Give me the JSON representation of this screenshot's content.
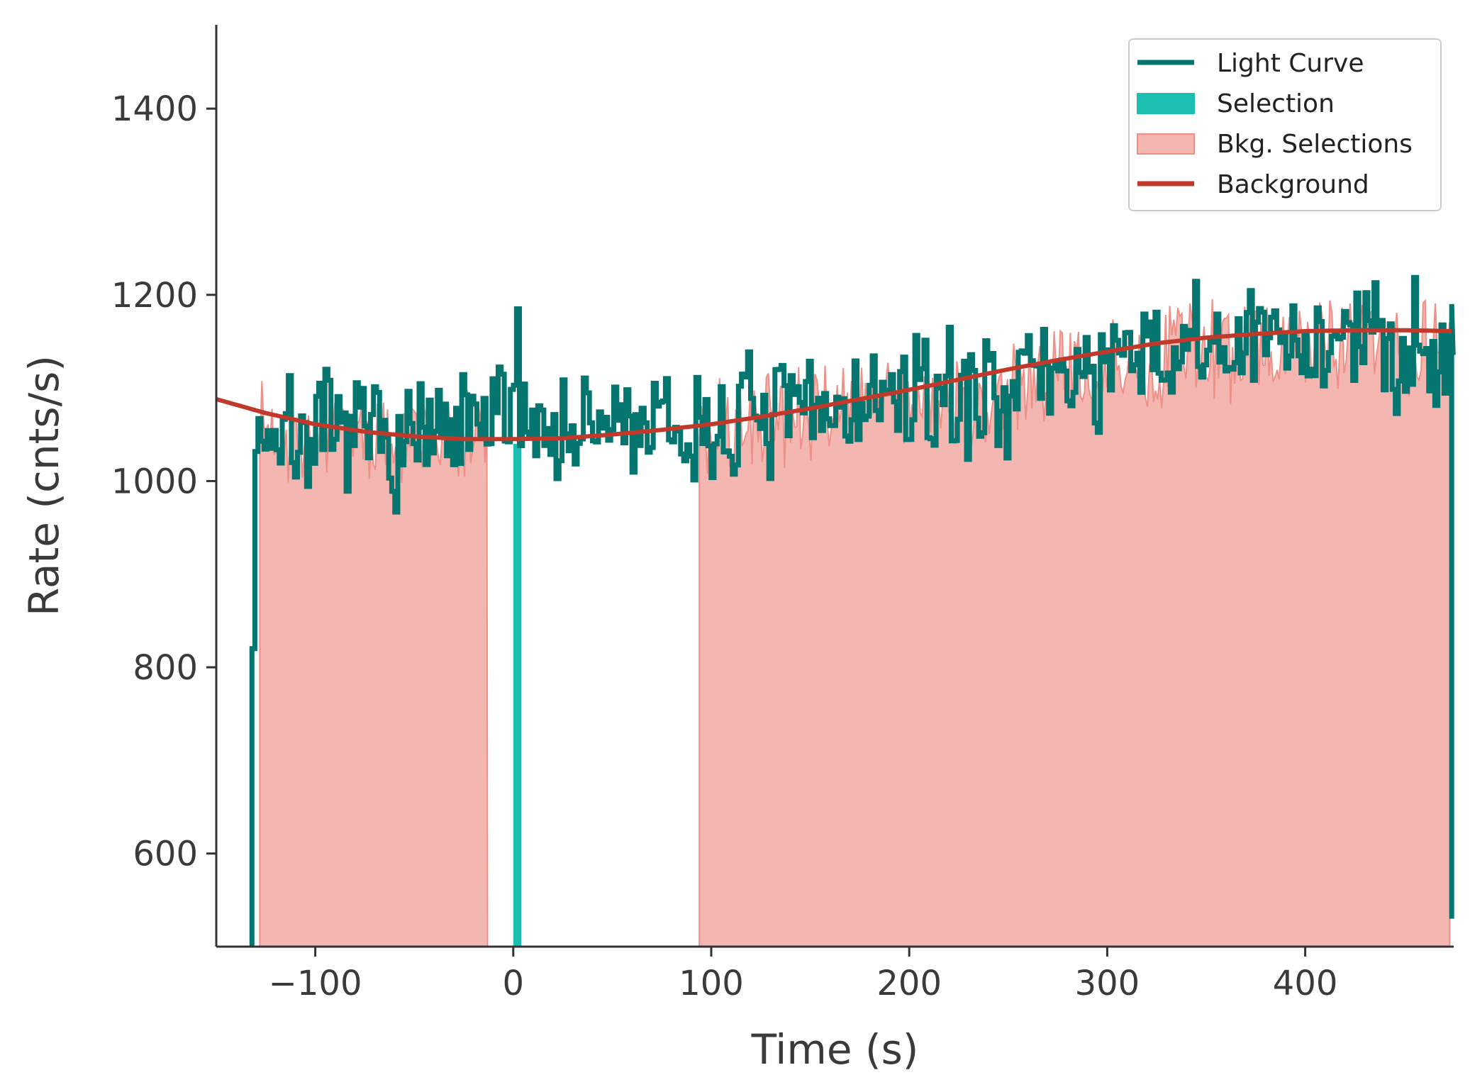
{
  "chart_data": {
    "type": "line",
    "title": "",
    "xlabel": "Time (s)",
    "ylabel": "Rate (cnts/s)",
    "xlim": [
      -150,
      475
    ],
    "ylim": [
      500,
      1490
    ],
    "xticks": [
      -100,
      0,
      100,
      200,
      300,
      400
    ],
    "xtick_labels": [
      "−100",
      "0",
      "100",
      "200",
      "300",
      "400"
    ],
    "yticks": [
      600,
      800,
      1000,
      1200,
      1400
    ],
    "ytick_labels": [
      "600",
      "800",
      "1000",
      "1200",
      "1400"
    ],
    "grid": false,
    "legend_position": "top-right",
    "legend": [
      {
        "label": "Light Curve",
        "kind": "line",
        "color": "#04756f"
      },
      {
        "label": "Selection",
        "kind": "patch",
        "color": "#1dbfb3"
      },
      {
        "label": "Bkg. Selections",
        "kind": "patch",
        "color": "#f4b6b0",
        "edge": "#ee8f88"
      },
      {
        "label": "Background",
        "kind": "line",
        "color": "#c0392b"
      }
    ],
    "light_curve": {
      "color": "#04756f",
      "bin_width_s": 1.024,
      "t_start": -132,
      "t_end": 475,
      "start_step_values": [
        500,
        820
      ],
      "end_step_values": [
        1190,
        530
      ],
      "x": [
        -130,
        -120,
        -110,
        -100,
        -90,
        -80,
        -70,
        -60,
        -50,
        -40,
        -30,
        -20,
        -10,
        0,
        2,
        10,
        20,
        30,
        40,
        50,
        60,
        70,
        80,
        90,
        100,
        110,
        120,
        130,
        140,
        150,
        160,
        170,
        180,
        190,
        200,
        210,
        220,
        230,
        240,
        250,
        260,
        270,
        280,
        290,
        300,
        310,
        320,
        330,
        340,
        350,
        360,
        370,
        380,
        390,
        400,
        410,
        420,
        430,
        440,
        450,
        460,
        470
      ],
      "y": [
        1060,
        1052,
        1048,
        1050,
        1040,
        1055,
        1045,
        1042,
        1048,
        1040,
        1045,
        1055,
        1060,
        1085,
        1105,
        1055,
        1060,
        1050,
        1050,
        1065,
        1060,
        1060,
        1045,
        1050,
        1055,
        1060,
        1075,
        1065,
        1070,
        1075,
        1080,
        1080,
        1085,
        1085,
        1090,
        1085,
        1095,
        1085,
        1100,
        1105,
        1110,
        1115,
        1118,
        1120,
        1115,
        1125,
        1130,
        1135,
        1140,
        1140,
        1140,
        1145,
        1150,
        1150,
        1150,
        1150,
        1155,
        1150,
        1150,
        1145,
        1145,
        1150
      ],
      "noise_amplitude": 45,
      "noise_seed": 7
    },
    "selection": {
      "start": 0,
      "end": 4,
      "color": "#1dbfb3"
    },
    "bkg_selections": {
      "color": "#f4b6b0",
      "edge": "#ee8f88",
      "ranges": [
        [
          -128,
          -13
        ],
        [
          94,
          473
        ]
      ]
    },
    "background": {
      "color": "#c0392b",
      "x": [
        -150,
        -125,
        -100,
        -75,
        -50,
        -25,
        0,
        25,
        50,
        75,
        100,
        125,
        150,
        175,
        200,
        225,
        250,
        275,
        300,
        325,
        350,
        375,
        400,
        425,
        450,
        475
      ],
      "y": [
        1088,
        1073,
        1061,
        1053,
        1048,
        1045,
        1045,
        1046,
        1050,
        1055,
        1061,
        1069,
        1078,
        1088,
        1098,
        1109,
        1120,
        1130,
        1139,
        1148,
        1154,
        1158,
        1161,
        1162,
        1162,
        1161
      ]
    }
  }
}
